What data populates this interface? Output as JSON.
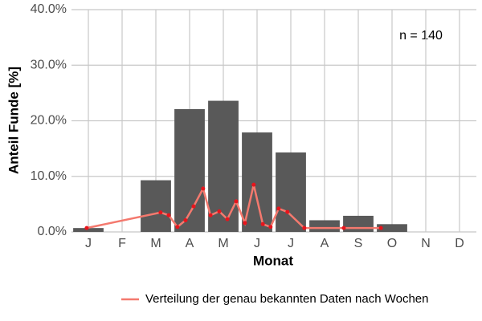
{
  "chart_data": {
    "type": "bar",
    "xlabel": "Monat",
    "ylabel": "Anteil Funde [%]",
    "annotation": "n = 140",
    "categories": [
      "J",
      "F",
      "M",
      "A",
      "M",
      "J",
      "J",
      "A",
      "S",
      "O",
      "N",
      "D"
    ],
    "values": [
      0.7,
      0,
      9.3,
      22.1,
      23.6,
      17.9,
      14.3,
      2.1,
      2.9,
      1.4,
      0,
      0
    ],
    "color": "#595959",
    "xlim": [
      0.5,
      12.5
    ],
    "ylim": [
      0,
      40
    ],
    "yticks": [
      {
        "value": 0,
        "label": "0.0%"
      },
      {
        "value": 10,
        "label": "10.0%"
      },
      {
        "value": 20,
        "label": "20.0%"
      },
      {
        "value": 30,
        "label": "30.0%"
      },
      {
        "value": 40,
        "label": "40.0%"
      }
    ],
    "grid": true,
    "legend": "bottom",
    "series": [
      {
        "name": "Verteilung der genau bekannten Daten nach Wochen",
        "type": "line",
        "color": "#f4796e",
        "point_color": "#e8141c",
        "x": [
          0.95,
          3.14,
          3.38,
          3.64,
          3.88,
          4.12,
          4.4,
          4.62,
          4.88,
          5.12,
          5.38,
          5.64,
          5.9,
          6.17,
          6.4,
          6.64,
          6.9,
          7.4,
          8.57,
          9.67
        ],
        "values": [
          0.7,
          3.5,
          3.0,
          0.9,
          2.1,
          4.6,
          7.8,
          3.0,
          3.7,
          2.3,
          5.5,
          1.6,
          8.5,
          1.4,
          0.9,
          4.2,
          3.6,
          0.7,
          0.7,
          0.7
        ]
      }
    ]
  }
}
